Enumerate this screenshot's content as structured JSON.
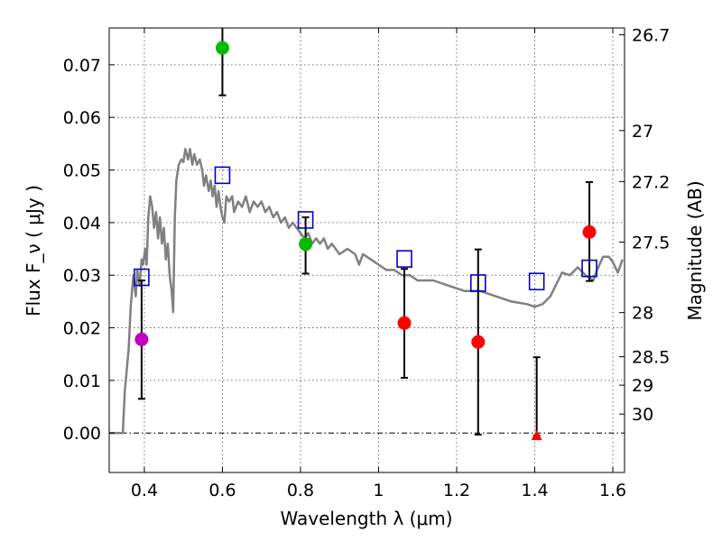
{
  "chart_data": {
    "type": "scatter",
    "xlabel": "Wavelength  λ (μm)",
    "ylabel": "Flux  F_ν  ( μJy )",
    "ylabel_right": "Magnitude (AB)",
    "xlim": [
      0.31,
      1.63
    ],
    "ylim": [
      -0.0075,
      0.077
    ],
    "xticks": [
      0.4,
      0.6,
      0.8,
      1.0,
      1.2,
      1.4,
      1.6
    ],
    "xtick_labels": [
      "0.4",
      "0.6",
      "0.8",
      "1",
      "1.2",
      "1.4",
      "1.6"
    ],
    "yticks": [
      0.0,
      0.01,
      0.02,
      0.03,
      0.04,
      0.05,
      0.06,
      0.07
    ],
    "ytick_labels": [
      "0.00",
      "0.01",
      "0.02",
      "0.03",
      "0.04",
      "0.05",
      "0.06",
      "0.07"
    ],
    "right_ticks": [
      {
        "flux": 0.0757,
        "label": "26.7"
      },
      {
        "flux": 0.0575,
        "label": "27"
      },
      {
        "flux": 0.0478,
        "label": "27.2"
      },
      {
        "flux": 0.0363,
        "label": "27.5"
      },
      {
        "flux": 0.0229,
        "label": "28"
      },
      {
        "flux": 0.0145,
        "label": "28.5"
      },
      {
        "flux": 0.0091,
        "label": "29"
      },
      {
        "flux": 0.0036,
        "label": "30"
      }
    ],
    "grid": true,
    "zero_line": 0.0,
    "colors": {
      "model": "#808080",
      "errorbar": "#000000",
      "square": "#0000cc",
      "violet": "#bf00bf",
      "green": "#00bb00",
      "red": "#ff0000"
    },
    "model_spectrum": [
      [
        0.31,
        0.0
      ],
      [
        0.345,
        0.0
      ],
      [
        0.35,
        0.008
      ],
      [
        0.36,
        0.016
      ],
      [
        0.365,
        0.024
      ],
      [
        0.372,
        0.03
      ],
      [
        0.378,
        0.026
      ],
      [
        0.382,
        0.031
      ],
      [
        0.388,
        0.028
      ],
      [
        0.393,
        0.033
      ],
      [
        0.397,
        0.032
      ],
      [
        0.402,
        0.035
      ],
      [
        0.406,
        0.032
      ],
      [
        0.41,
        0.041
      ],
      [
        0.415,
        0.045
      ],
      [
        0.42,
        0.043
      ],
      [
        0.425,
        0.039
      ],
      [
        0.43,
        0.042
      ],
      [
        0.435,
        0.037
      ],
      [
        0.44,
        0.041
      ],
      [
        0.445,
        0.036
      ],
      [
        0.45,
        0.039
      ],
      [
        0.455,
        0.033
      ],
      [
        0.46,
        0.036
      ],
      [
        0.465,
        0.03
      ],
      [
        0.47,
        0.027
      ],
      [
        0.474,
        0.023
      ],
      [
        0.478,
        0.041
      ],
      [
        0.482,
        0.048
      ],
      [
        0.488,
        0.051
      ],
      [
        0.495,
        0.052
      ],
      [
        0.5,
        0.0515
      ],
      [
        0.505,
        0.054
      ],
      [
        0.512,
        0.052
      ],
      [
        0.517,
        0.054
      ],
      [
        0.523,
        0.051
      ],
      [
        0.528,
        0.053
      ],
      [
        0.535,
        0.051
      ],
      [
        0.542,
        0.052
      ],
      [
        0.548,
        0.05
      ],
      [
        0.553,
        0.047
      ],
      [
        0.558,
        0.049
      ],
      [
        0.565,
        0.046
      ],
      [
        0.57,
        0.048
      ],
      [
        0.575,
        0.045
      ],
      [
        0.58,
        0.047
      ],
      [
        0.585,
        0.043
      ],
      [
        0.59,
        0.046
      ],
      [
        0.595,
        0.043
      ],
      [
        0.6,
        0.041
      ],
      [
        0.605,
        0.04
      ],
      [
        0.61,
        0.045
      ],
      [
        0.617,
        0.044
      ],
      [
        0.625,
        0.045
      ],
      [
        0.63,
        0.042
      ],
      [
        0.64,
        0.044
      ],
      [
        0.65,
        0.043
      ],
      [
        0.66,
        0.045
      ],
      [
        0.67,
        0.042
      ],
      [
        0.68,
        0.044
      ],
      [
        0.69,
        0.043
      ],
      [
        0.7,
        0.044
      ],
      [
        0.71,
        0.042
      ],
      [
        0.72,
        0.043
      ],
      [
        0.73,
        0.041
      ],
      [
        0.74,
        0.042
      ],
      [
        0.75,
        0.04
      ],
      [
        0.76,
        0.041
      ],
      [
        0.77,
        0.039
      ],
      [
        0.78,
        0.04
      ],
      [
        0.79,
        0.039
      ],
      [
        0.8,
        0.038
      ],
      [
        0.81,
        0.037
      ],
      [
        0.82,
        0.038
      ],
      [
        0.83,
        0.036
      ],
      [
        0.84,
        0.037
      ],
      [
        0.85,
        0.036
      ],
      [
        0.86,
        0.037
      ],
      [
        0.87,
        0.035
      ],
      [
        0.88,
        0.036
      ],
      [
        0.89,
        0.035
      ],
      [
        0.9,
        0.034
      ],
      [
        0.92,
        0.035
      ],
      [
        0.94,
        0.034
      ],
      [
        0.95,
        0.032
      ],
      [
        0.96,
        0.034
      ],
      [
        0.98,
        0.033
      ],
      [
        1.0,
        0.032
      ],
      [
        1.02,
        0.031
      ],
      [
        1.04,
        0.031
      ],
      [
        1.06,
        0.03
      ],
      [
        1.08,
        0.03
      ],
      [
        1.1,
        0.029
      ],
      [
        1.14,
        0.029
      ],
      [
        1.18,
        0.028
      ],
      [
        1.22,
        0.027
      ],
      [
        1.26,
        0.027
      ],
      [
        1.3,
        0.026
      ],
      [
        1.34,
        0.025
      ],
      [
        1.38,
        0.0245
      ],
      [
        1.4,
        0.024
      ],
      [
        1.42,
        0.0245
      ],
      [
        1.44,
        0.026
      ],
      [
        1.46,
        0.029
      ],
      [
        1.47,
        0.0305
      ],
      [
        1.49,
        0.03
      ],
      [
        1.51,
        0.0315
      ],
      [
        1.53,
        0.03
      ],
      [
        1.55,
        0.029
      ],
      [
        1.56,
        0.031
      ],
      [
        1.575,
        0.0335
      ],
      [
        1.59,
        0.0335
      ],
      [
        1.6,
        0.0325
      ],
      [
        1.613,
        0.0305
      ],
      [
        1.625,
        0.033
      ]
    ],
    "model_photometry": [
      {
        "x": 0.393,
        "y": 0.0296
      },
      {
        "x": 0.6,
        "y": 0.049
      },
      {
        "x": 0.813,
        "y": 0.0405
      },
      {
        "x": 1.066,
        "y": 0.0331
      },
      {
        "x": 1.255,
        "y": 0.0285
      },
      {
        "x": 1.405,
        "y": 0.0288
      },
      {
        "x": 1.54,
        "y": 0.0313
      }
    ],
    "observations": [
      {
        "x": 0.393,
        "y": 0.0178,
        "ylo": 0.0065,
        "yhi": 0.029,
        "color": "violet",
        "marker": "circle"
      },
      {
        "x": 0.6,
        "y": 0.0732,
        "ylo": 0.0642,
        "yhi": 0.077,
        "color": "green",
        "marker": "circle"
      },
      {
        "x": 0.813,
        "y": 0.0359,
        "ylo": 0.0303,
        "yhi": 0.041,
        "color": "green",
        "marker": "circle"
      },
      {
        "x": 1.066,
        "y": 0.0209,
        "ylo": 0.0105,
        "yhi": 0.0312,
        "color": "red",
        "marker": "circle"
      },
      {
        "x": 1.255,
        "y": 0.0173,
        "ylo": -0.0003,
        "yhi": 0.0349,
        "color": "red",
        "marker": "circle"
      },
      {
        "x": 1.405,
        "y": -0.0005,
        "ylo": -0.0005,
        "yhi": 0.0144,
        "color": "red",
        "marker": "triangle"
      },
      {
        "x": 1.54,
        "y": 0.0382,
        "ylo": 0.0289,
        "yhi": 0.0477,
        "color": "red",
        "marker": "circle"
      }
    ]
  }
}
